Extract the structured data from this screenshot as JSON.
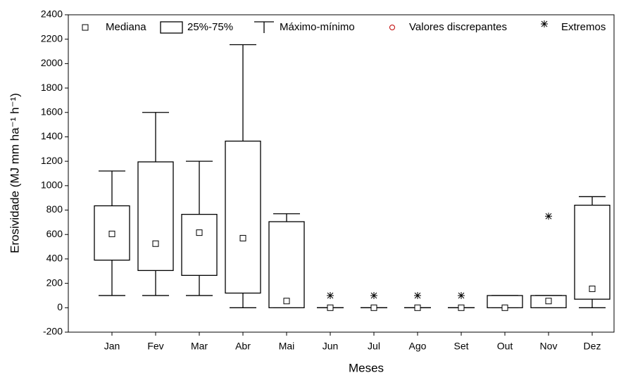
{
  "chart_data": {
    "type": "box",
    "x_label": "Meses",
    "y_label": "Erosividade (MJ mm ha⁻¹ h⁻¹)",
    "categories": [
      "Jan",
      "Fev",
      "Mar",
      "Abr",
      "Mai",
      "Jun",
      "Jul",
      "Ago",
      "Set",
      "Out",
      "Nov",
      "Dez"
    ],
    "min": [
      100,
      100,
      100,
      0,
      0,
      0,
      0,
      0,
      0,
      0,
      0,
      0
    ],
    "q1": [
      390,
      305,
      265,
      120,
      0,
      0,
      0,
      0,
      0,
      0,
      0,
      70
    ],
    "median": [
      605,
      525,
      615,
      570,
      55,
      0,
      0,
      0,
      0,
      0,
      55,
      155
    ],
    "q3": [
      835,
      1195,
      765,
      1365,
      705,
      0,
      0,
      0,
      0,
      100,
      100,
      840
    ],
    "max": [
      1120,
      1600,
      1200,
      2155,
      770,
      0,
      0,
      0,
      0,
      100,
      100,
      910
    ],
    "extremes": [
      null,
      null,
      null,
      null,
      null,
      100,
      100,
      100,
      100,
      null,
      750,
      null
    ],
    "outlier_color": "#c00000",
    "legend": {
      "median": "Mediana",
      "box": "25%-75%",
      "whisker": "Máximo-mínimo",
      "outlier": "Valores discrepantes",
      "extreme": "Extremos"
    },
    "ylim": [
      -200,
      2400
    ],
    "yticks": [
      -200,
      0,
      200,
      400,
      600,
      800,
      1000,
      1200,
      1400,
      1600,
      1800,
      2000,
      2200,
      2400
    ]
  }
}
